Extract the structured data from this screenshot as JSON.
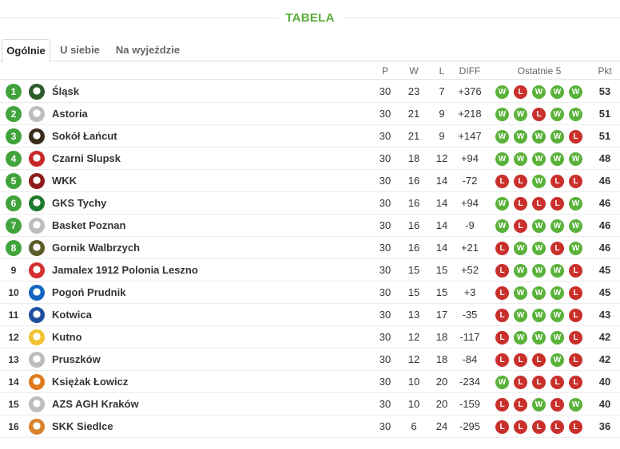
{
  "title": "TABELA",
  "tabs": [
    {
      "label": "Ogólnie",
      "active": true
    },
    {
      "label": "U siebie",
      "active": false
    },
    {
      "label": "Na wyjeździe",
      "active": false
    }
  ],
  "columns": {
    "p": "P",
    "w": "W",
    "l": "L",
    "diff": "DIFF",
    "form": "Ostatnie 5",
    "pts": "Pkt"
  },
  "colors": {
    "accent": "#5bab3a",
    "win": "#5ab23a",
    "loss": "#c9302c",
    "position_highlight": "#41a33b"
  },
  "rows": [
    {
      "pos": "1",
      "team": "Śląsk",
      "p": "30",
      "w": "23",
      "l": "7",
      "diff": "+376",
      "form": [
        "W",
        "L",
        "W",
        "W",
        "W"
      ],
      "pts": "53",
      "logo": "#2e5a2a",
      "highlight": true
    },
    {
      "pos": "2",
      "team": "Astoria",
      "p": "30",
      "w": "21",
      "l": "9",
      "diff": "+218",
      "form": [
        "W",
        "W",
        "L",
        "W",
        "W"
      ],
      "pts": "51",
      "logo": "#bdbdbd",
      "highlight": true
    },
    {
      "pos": "3",
      "team": "Sokół Łańcut",
      "p": "30",
      "w": "21",
      "l": "9",
      "diff": "+147",
      "form": [
        "W",
        "W",
        "W",
        "W",
        "L"
      ],
      "pts": "51",
      "logo": "#3a2a1a",
      "highlight": true
    },
    {
      "pos": "4",
      "team": "Czarni Slupsk",
      "p": "30",
      "w": "18",
      "l": "12",
      "diff": "+94",
      "form": [
        "W",
        "W",
        "W",
        "W",
        "W"
      ],
      "pts": "48",
      "logo": "#c62828",
      "highlight": true
    },
    {
      "pos": "5",
      "team": "WKK",
      "p": "30",
      "w": "16",
      "l": "14",
      "diff": "-72",
      "form": [
        "L",
        "L",
        "W",
        "L",
        "L"
      ],
      "pts": "46",
      "logo": "#8d1b1b",
      "highlight": true
    },
    {
      "pos": "6",
      "team": "GKS Tychy",
      "p": "30",
      "w": "16",
      "l": "14",
      "diff": "+94",
      "form": [
        "W",
        "L",
        "L",
        "L",
        "W"
      ],
      "pts": "46",
      "logo": "#1e7a2e",
      "highlight": true
    },
    {
      "pos": "7",
      "team": "Basket Poznan",
      "p": "30",
      "w": "16",
      "l": "14",
      "diff": "-9",
      "form": [
        "W",
        "L",
        "W",
        "W",
        "W"
      ],
      "pts": "46",
      "logo": "#bdbdbd",
      "highlight": true
    },
    {
      "pos": "8",
      "team": "Gornik Walbrzych",
      "p": "30",
      "w": "16",
      "l": "14",
      "diff": "+21",
      "form": [
        "L",
        "W",
        "W",
        "L",
        "W"
      ],
      "pts": "46",
      "logo": "#5c5c2a",
      "highlight": true
    },
    {
      "pos": "9",
      "team": "Jamalex 1912 Polonia Leszno",
      "p": "30",
      "w": "15",
      "l": "15",
      "diff": "+52",
      "form": [
        "L",
        "W",
        "W",
        "W",
        "L"
      ],
      "pts": "45",
      "logo": "#d32f2f",
      "highlight": false
    },
    {
      "pos": "10",
      "team": "Pogoń Prudnik",
      "p": "30",
      "w": "15",
      "l": "15",
      "diff": "+3",
      "form": [
        "L",
        "W",
        "W",
        "W",
        "L"
      ],
      "pts": "45",
      "logo": "#1565c0",
      "highlight": false
    },
    {
      "pos": "11",
      "team": "Kotwica",
      "p": "30",
      "w": "13",
      "l": "17",
      "diff": "-35",
      "form": [
        "L",
        "W",
        "W",
        "W",
        "L"
      ],
      "pts": "43",
      "logo": "#1e4fa0",
      "highlight": false
    },
    {
      "pos": "12",
      "team": "Kutno",
      "p": "30",
      "w": "12",
      "l": "18",
      "diff": "-117",
      "form": [
        "L",
        "W",
        "W",
        "W",
        "L"
      ],
      "pts": "42",
      "logo": "#f2c230",
      "highlight": false
    },
    {
      "pos": "13",
      "team": "Pruszków",
      "p": "30",
      "w": "12",
      "l": "18",
      "diff": "-84",
      "form": [
        "L",
        "L",
        "L",
        "W",
        "L"
      ],
      "pts": "42",
      "logo": "#bdbdbd",
      "highlight": false
    },
    {
      "pos": "14",
      "team": "Księżak Łowicz",
      "p": "30",
      "w": "10",
      "l": "20",
      "diff": "-234",
      "form": [
        "W",
        "L",
        "L",
        "L",
        "L"
      ],
      "pts": "40",
      "logo": "#e07a1f",
      "highlight": false
    },
    {
      "pos": "15",
      "team": "AZS AGH Kraków",
      "p": "30",
      "w": "10",
      "l": "20",
      "diff": "-159",
      "form": [
        "L",
        "L",
        "W",
        "L",
        "W"
      ],
      "pts": "40",
      "logo": "#bdbdbd",
      "highlight": false
    },
    {
      "pos": "16",
      "team": "SKK Siedlce",
      "p": "30",
      "w": "6",
      "l": "24",
      "diff": "-295",
      "form": [
        "L",
        "L",
        "L",
        "L",
        "L"
      ],
      "pts": "36",
      "logo": "#d9822b",
      "highlight": false
    }
  ]
}
